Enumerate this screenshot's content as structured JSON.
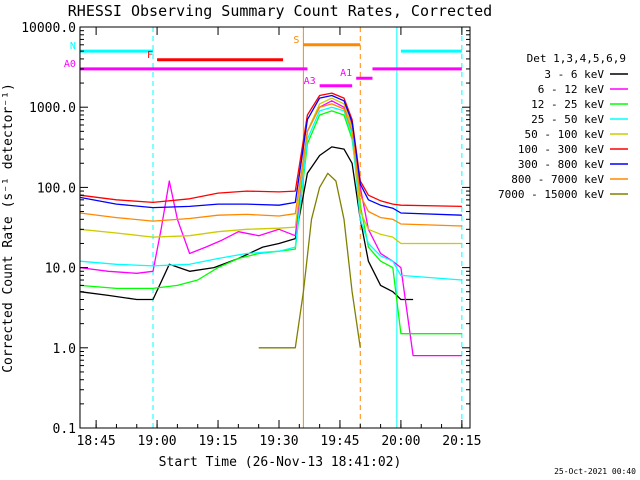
{
  "chart_data": {
    "type": "line",
    "title": "RHESSI Observing Summary Count Rates, Corrected",
    "xlabel": "Start Time (26-Nov-13 18:41:02)",
    "ylabel": "Corrected Count Rate (s⁻¹ detector⁻¹)",
    "y_scale": "log",
    "ylim": [
      0.1,
      10000.0
    ],
    "xlim": [
      "18:41:02",
      "20:17:00"
    ],
    "x_ticks": [
      "18:45",
      "19:00",
      "19:15",
      "19:30",
      "19:45",
      "20:00",
      "20:15"
    ],
    "y_ticks": [
      "0.1",
      "1.0",
      "10.0",
      "100.0",
      "1000.0",
      "10000.0"
    ],
    "legend_title": "Det 1,3,4,5,6,9",
    "legend_position": "right",
    "timestamp": "25-Oct-2021 00:40",
    "series": [
      {
        "name": "3 - 6 keV",
        "color": "#000000",
        "x": [
          "18:41",
          "18:48",
          "18:55",
          "18:59",
          "19:03",
          "19:08",
          "19:14",
          "19:20",
          "19:26",
          "19:30",
          "19:34",
          "19:37",
          "19:40",
          "19:43",
          "19:46",
          "19:48",
          "19:50",
          "19:52",
          "19:55",
          "19:58",
          "20:00",
          "20:03"
        ],
        "values": [
          5,
          4.5,
          4,
          4,
          11,
          9,
          10,
          13,
          18,
          20,
          23,
          150,
          250,
          320,
          300,
          200,
          40,
          12,
          6,
          5,
          4,
          4
        ]
      },
      {
        "name": "6 - 12 keV",
        "color": "#ff00ff",
        "x": [
          "18:41",
          "18:48",
          "18:55",
          "18:59",
          "19:01",
          "19:03",
          "19:05",
          "19:08",
          "19:12",
          "19:16",
          "19:20",
          "19:25",
          "19:30",
          "19:34",
          "19:37",
          "19:40",
          "19:43",
          "19:46",
          "19:48",
          "19:50",
          "19:52",
          "19:55",
          "19:58",
          "20:00",
          "20:03",
          "20:15"
        ],
        "values": [
          10,
          9,
          8.5,
          9,
          30,
          120,
          40,
          15,
          18,
          22,
          28,
          25,
          30,
          25,
          500,
          1000,
          1200,
          1000,
          600,
          100,
          30,
          15,
          12,
          10,
          0.8,
          0.8
        ]
      },
      {
        "name": "12 - 25 keV",
        "color": "#00ff00",
        "x": [
          "18:41",
          "18:50",
          "18:59",
          "19:05",
          "19:10",
          "19:15",
          "19:20",
          "19:25",
          "19:30",
          "19:34",
          "19:37",
          "19:40",
          "19:43",
          "19:46",
          "19:48",
          "19:50",
          "19:52",
          "19:55",
          "19:58",
          "20:00",
          "20:15"
        ],
        "values": [
          6,
          5.5,
          5.5,
          6,
          7,
          10,
          13,
          15,
          16,
          17,
          350,
          800,
          900,
          800,
          400,
          60,
          18,
          12,
          10,
          1.5,
          1.5
        ]
      },
      {
        "name": "25 - 50 keV",
        "color": "#00ffff",
        "x": [
          "18:41",
          "18:50",
          "18:59",
          "19:08",
          "19:15",
          "19:22",
          "19:30",
          "19:34",
          "19:37",
          "19:40",
          "19:43",
          "19:46",
          "19:48",
          "19:50",
          "19:52",
          "19:55",
          "19:58",
          "20:00",
          "20:15"
        ],
        "values": [
          12,
          11,
          10.5,
          11,
          13,
          15,
          16,
          18,
          400,
          900,
          1000,
          900,
          450,
          40,
          20,
          14,
          12,
          8,
          7
        ]
      },
      {
        "name": "50 - 100 keV",
        "color": "#cccc00",
        "x": [
          "18:41",
          "18:50",
          "18:59",
          "19:08",
          "19:15",
          "19:22",
          "19:30",
          "19:34",
          "19:37",
          "19:40",
          "19:43",
          "19:46",
          "19:48",
          "19:50",
          "19:52",
          "19:55",
          "19:58",
          "20:00",
          "20:15"
        ],
        "values": [
          30,
          27,
          24,
          25,
          28,
          30,
          31,
          32,
          500,
          1100,
          1300,
          1100,
          550,
          50,
          30,
          26,
          24,
          20,
          20
        ]
      },
      {
        "name": "100 - 300 keV",
        "color": "#ff0000",
        "x": [
          "18:41",
          "18:50",
          "18:59",
          "19:08",
          "19:15",
          "19:22",
          "19:30",
          "19:34",
          "19:37",
          "19:40",
          "19:43",
          "19:46",
          "19:48",
          "19:50",
          "19:52",
          "19:55",
          "19:58",
          "20:00",
          "20:15"
        ],
        "values": [
          80,
          70,
          65,
          72,
          85,
          90,
          88,
          90,
          800,
          1400,
          1500,
          1300,
          700,
          120,
          80,
          68,
          62,
          60,
          58
        ]
      },
      {
        "name": "300 - 800 keV",
        "color": "#0000ff",
        "x": [
          "18:41",
          "18:50",
          "18:59",
          "19:08",
          "19:15",
          "19:22",
          "19:30",
          "19:34",
          "19:37",
          "19:40",
          "19:43",
          "19:46",
          "19:48",
          "19:50",
          "19:52",
          "19:55",
          "19:58",
          "20:00",
          "20:15"
        ],
        "values": [
          75,
          62,
          56,
          58,
          62,
          62,
          60,
          65,
          700,
          1300,
          1400,
          1200,
          650,
          110,
          70,
          60,
          55,
          48,
          45
        ]
      },
      {
        "name": "800 - 7000 keV",
        "color": "#ff8800",
        "x": [
          "18:41",
          "18:50",
          "18:59",
          "19:08",
          "19:15",
          "19:22",
          "19:30",
          "19:34",
          "19:37",
          "19:40",
          "19:43",
          "19:46",
          "19:48",
          "19:50",
          "19:52",
          "19:55",
          "19:58",
          "20:00",
          "20:15"
        ],
        "values": [
          48,
          42,
          38,
          41,
          45,
          46,
          44,
          47,
          500,
          1000,
          1100,
          950,
          500,
          80,
          50,
          42,
          40,
          35,
          33
        ]
      },
      {
        "name": "7000 - 15000 keV",
        "color": "#808000",
        "x": [
          "19:25",
          "19:28",
          "19:31",
          "19:34",
          "19:36",
          "19:38",
          "19:40",
          "19:42",
          "19:44",
          "19:46",
          "19:48",
          "19:50"
        ],
        "values": [
          1.0,
          1.0,
          1.0,
          1.0,
          5,
          40,
          100,
          150,
          120,
          40,
          5,
          1.0
        ]
      }
    ],
    "flags": [
      {
        "label": "N",
        "color": "#00ffff",
        "level": 5000,
        "segments": [
          [
            "18:41",
            "18:59"
          ],
          [
            "20:00",
            "20:15"
          ]
        ]
      },
      {
        "label": "F",
        "color": "#ff0000",
        "level": 3900,
        "segments": [
          [
            "19:00",
            "19:31"
          ]
        ]
      },
      {
        "label": "S",
        "color": "#ff8800",
        "level": 6000,
        "segments": [
          [
            "19:36",
            "19:50"
          ]
        ]
      },
      {
        "label": "A0",
        "color": "#ff00ff",
        "level": 3000,
        "segments": [
          [
            "18:41",
            "19:37"
          ],
          [
            "19:53",
            "20:15"
          ]
        ]
      },
      {
        "label": "A1",
        "color": "#ff00ff",
        "level": 2300,
        "segments": [
          [
            "19:49",
            "19:53"
          ]
        ]
      },
      {
        "label": "A3",
        "color": "#ff00ff",
        "level": 1850,
        "segments": [
          [
            "19:40",
            "19:48"
          ]
        ]
      }
    ],
    "vertical_markers": [
      {
        "time": "18:41",
        "color": "#00ffff",
        "style": "solid"
      },
      {
        "time": "18:59",
        "color": "#00ffff",
        "style": "dashed"
      },
      {
        "time": "19:36",
        "color": "#ff8800",
        "style": "solid"
      },
      {
        "time": "19:50",
        "color": "#ff8800",
        "style": "dashed"
      },
      {
        "time": "19:59",
        "color": "#00ffff",
        "style": "solid"
      },
      {
        "time": "20:15",
        "color": "#00ffff",
        "style": "dashed"
      }
    ]
  }
}
